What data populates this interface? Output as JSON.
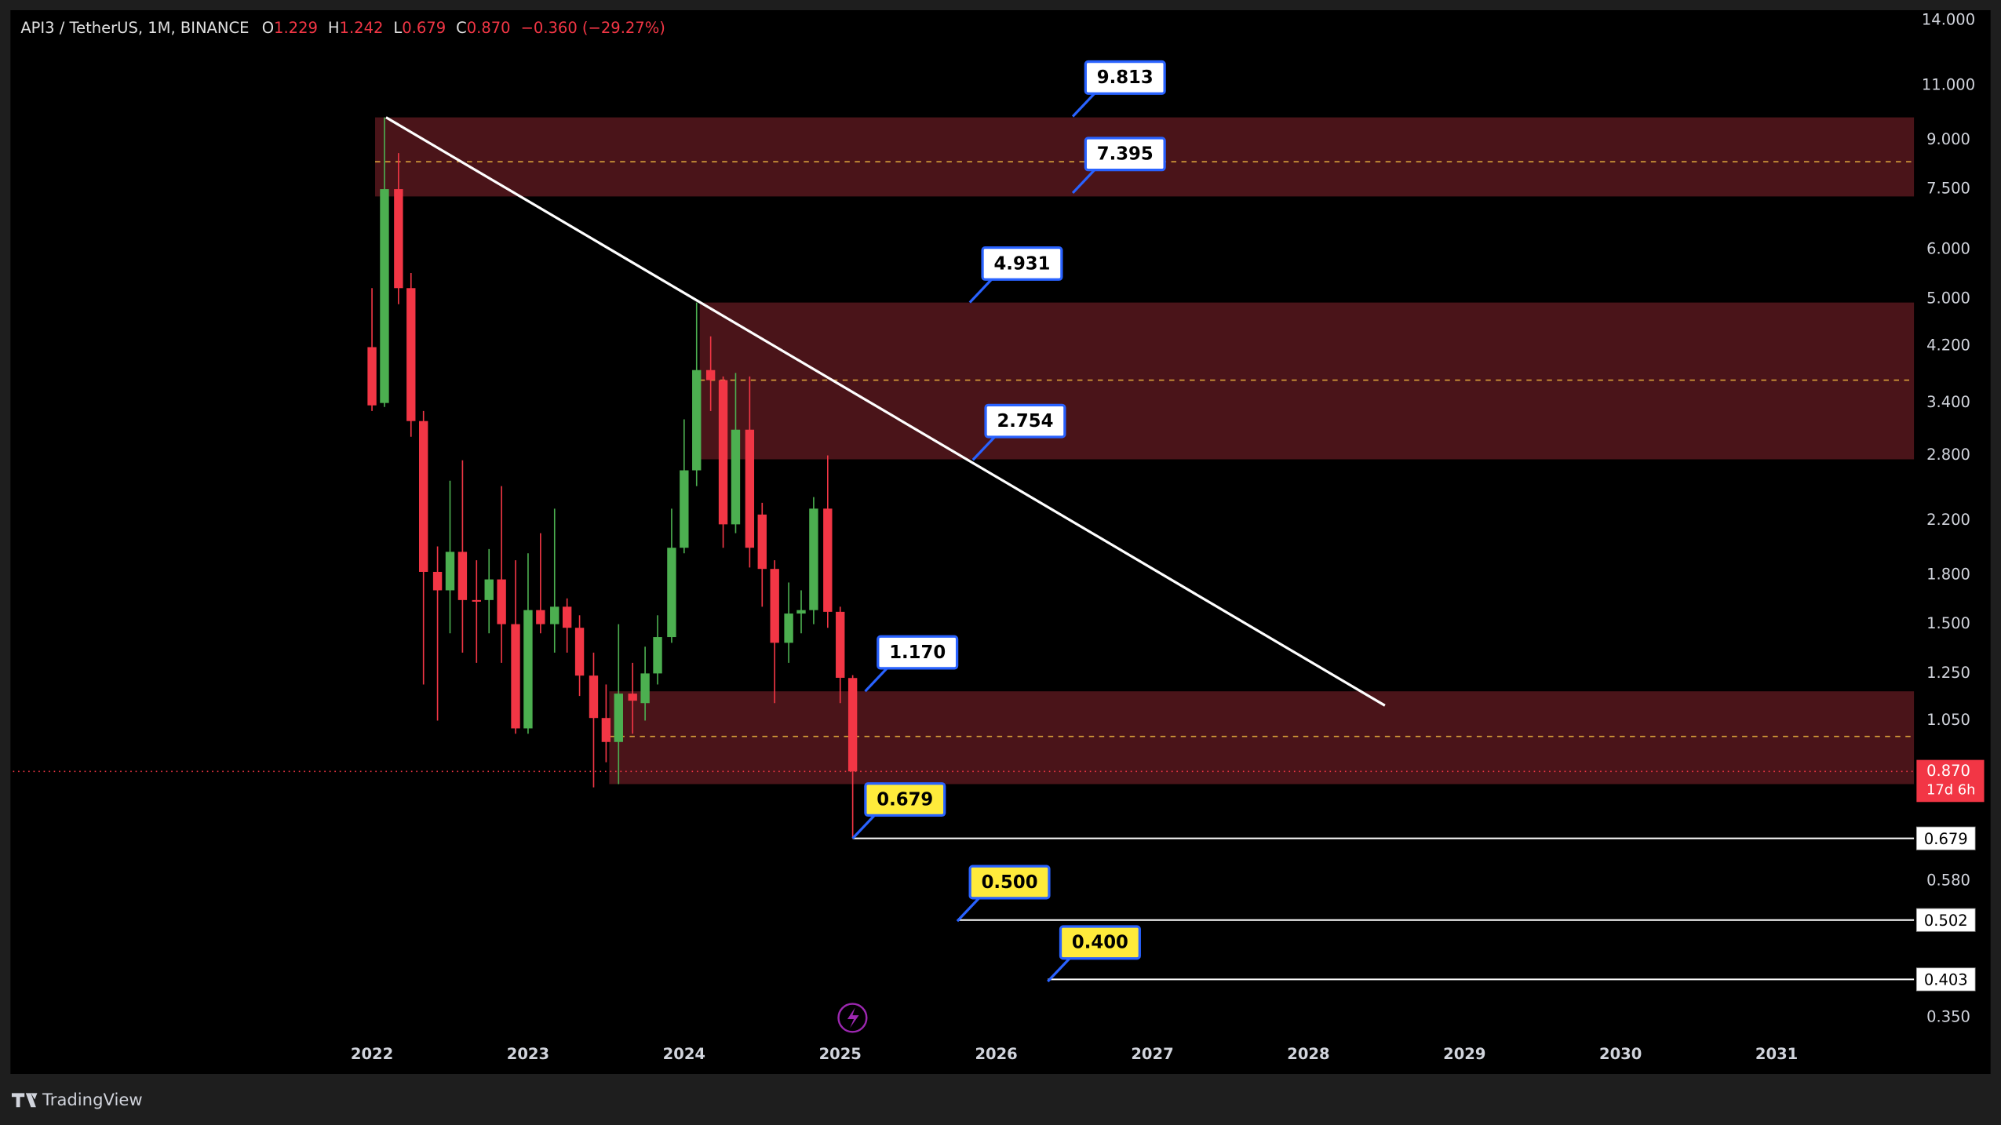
{
  "chart_data": {
    "type": "candlestick",
    "symbol": "API3 / TetherUS, 1M, BINANCE",
    "ohlc_header": [
      {
        "key": "O",
        "value": "1.229"
      },
      {
        "key": "H",
        "value": "1.242"
      },
      {
        "key": "L",
        "value": "0.679"
      },
      {
        "key": "C",
        "value": "0.870"
      }
    ],
    "change": "−0.360 (−29.27%)",
    "x": [
      2022.0,
      2022.08,
      2022.17,
      2022.25,
      2022.33,
      2022.42,
      2022.5,
      2022.58,
      2022.67,
      2022.75,
      2022.83,
      2022.92,
      2023.0,
      2023.08,
      2023.17,
      2023.25,
      2023.33,
      2023.42,
      2023.5,
      2023.58,
      2023.67,
      2023.75,
      2023.83,
      2023.92,
      2024.0,
      2024.08,
      2024.17,
      2024.25,
      2024.33,
      2024.42,
      2024.5,
      2024.58,
      2024.67,
      2024.75,
      2024.83,
      2024.92,
      2025.0,
      2025.08
    ],
    "open": [
      4.18,
      3.4,
      7.5,
      5.2,
      3.18,
      1.82,
      1.7,
      1.96,
      1.64,
      1.64,
      1.77,
      1.5,
      1.02,
      1.58,
      1.5,
      1.6,
      1.48,
      1.24,
      1.06,
      0.97,
      1.16,
      1.12,
      1.25,
      1.43,
      1.99,
      2.65,
      3.84,
      3.7,
      2.17,
      3.08,
      2.25,
      1.84,
      1.4,
      1.56,
      1.58,
      2.3,
      1.57,
      1.229
    ],
    "high": [
      5.2,
      9.78,
      8.57,
      5.5,
      3.3,
      2.0,
      2.55,
      2.75,
      1.9,
      1.98,
      2.5,
      1.9,
      1.95,
      2.1,
      2.3,
      1.65,
      1.55,
      1.35,
      1.2,
      1.5,
      1.3,
      1.38,
      1.55,
      2.3,
      3.2,
      4.93,
      4.35,
      3.75,
      3.8,
      3.75,
      2.35,
      1.9,
      1.75,
      1.7,
      2.4,
      2.8,
      1.6,
      1.242
    ],
    "low": [
      3.3,
      3.35,
      4.9,
      3.0,
      1.2,
      1.05,
      1.45,
      1.35,
      1.3,
      1.45,
      1.3,
      1.0,
      1.0,
      1.45,
      1.35,
      1.35,
      1.15,
      0.82,
      0.9,
      0.83,
      1.0,
      1.05,
      1.2,
      1.4,
      1.95,
      2.5,
      3.3,
      1.99,
      2.1,
      1.85,
      1.6,
      1.12,
      1.3,
      1.45,
      1.5,
      1.48,
      1.12,
      0.679
    ],
    "close": [
      3.37,
      7.5,
      5.2,
      3.18,
      1.82,
      1.7,
      1.96,
      1.64,
      1.63,
      1.77,
      1.5,
      1.02,
      1.58,
      1.5,
      1.6,
      1.48,
      1.24,
      1.06,
      0.97,
      1.16,
      1.13,
      1.25,
      1.43,
      1.99,
      2.65,
      3.84,
      3.7,
      2.17,
      3.08,
      1.99,
      1.84,
      1.4,
      1.56,
      1.58,
      2.3,
      1.57,
      1.23,
      0.87
    ],
    "up_color": "#4caf50",
    "down_color": "#f23645",
    "y_scale": "log",
    "xlim": [
      2019.7,
      2031.88
    ],
    "ylim": [
      0.284,
      14.54
    ],
    "xticks": [
      2022,
      2023,
      2024,
      2025,
      2026,
      2027,
      2028,
      2029,
      2030,
      2031
    ],
    "yticks": [
      {
        "value": 14,
        "label": "14.000"
      },
      {
        "value": 11,
        "label": "11.000"
      },
      {
        "value": 9,
        "label": "9.000"
      },
      {
        "value": 7.5,
        "label": "7.500"
      },
      {
        "value": 6,
        "label": "6.000"
      },
      {
        "value": 5,
        "label": "5.000"
      },
      {
        "value": 4.2,
        "label": "4.200"
      },
      {
        "value": 3.4,
        "label": "3.400"
      },
      {
        "value": 2.8,
        "label": "2.800"
      },
      {
        "value": 2.2,
        "label": "2.200"
      },
      {
        "value": 1.8,
        "label": "1.800"
      },
      {
        "value": 1.5,
        "label": "1.500"
      },
      {
        "value": 1.25,
        "label": "1.250"
      },
      {
        "value": 1.05,
        "label": "1.050"
      },
      {
        "value": 0.58,
        "label": "0.580"
      },
      {
        "value": 0.35,
        "label": "0.350"
      }
    ],
    "zones": [
      {
        "from": 7.3,
        "to": 9.78,
        "mid": 8.3,
        "x_start": 2022.02
      },
      {
        "from": 2.76,
        "to": 4.93,
        "mid": 3.7,
        "x_start": 2024.1
      },
      {
        "from": 0.83,
        "to": 1.17,
        "mid": 0.99,
        "x_start": 2023.52
      }
    ],
    "zone_color": "#4a1419",
    "mid_color": "#d9a13b",
    "trendline": {
      "x": [
        2022.09,
        2028.49
      ],
      "y": [
        9.78,
        1.11
      ],
      "color": "#ffffff"
    },
    "callouts": [
      {
        "x": 2026.49,
        "value": 9.813,
        "fill": "#ffffff"
      },
      {
        "x": 2026.49,
        "value": 7.395,
        "fill": "#ffffff"
      },
      {
        "x": 2025.83,
        "value": 4.931,
        "fill": "#ffffff"
      },
      {
        "x": 2025.85,
        "value": 2.754,
        "fill": "#ffffff"
      },
      {
        "x": 2025.16,
        "value": 1.17,
        "label": "1.170",
        "fill": "#ffffff"
      },
      {
        "x": 2025.08,
        "value": 0.679,
        "fill": "#ffeb3b"
      },
      {
        "x": 2025.75,
        "value": 0.5,
        "label": "0.500",
        "fill": "#ffeb3b"
      },
      {
        "x": 2026.33,
        "value": 0.4,
        "label": "0.400",
        "fill": "#ffeb3b"
      }
    ],
    "callout_border": "#2962ff",
    "levels": [
      {
        "x": 2025.08,
        "value": 0.679
      },
      {
        "x": 2025.75,
        "value": 0.502
      },
      {
        "x": 2026.33,
        "value": 0.403
      }
    ],
    "last_price": {
      "value": 0.87,
      "label": "0.870",
      "countdown": "17d 6h"
    },
    "watermark": "TradingView"
  }
}
